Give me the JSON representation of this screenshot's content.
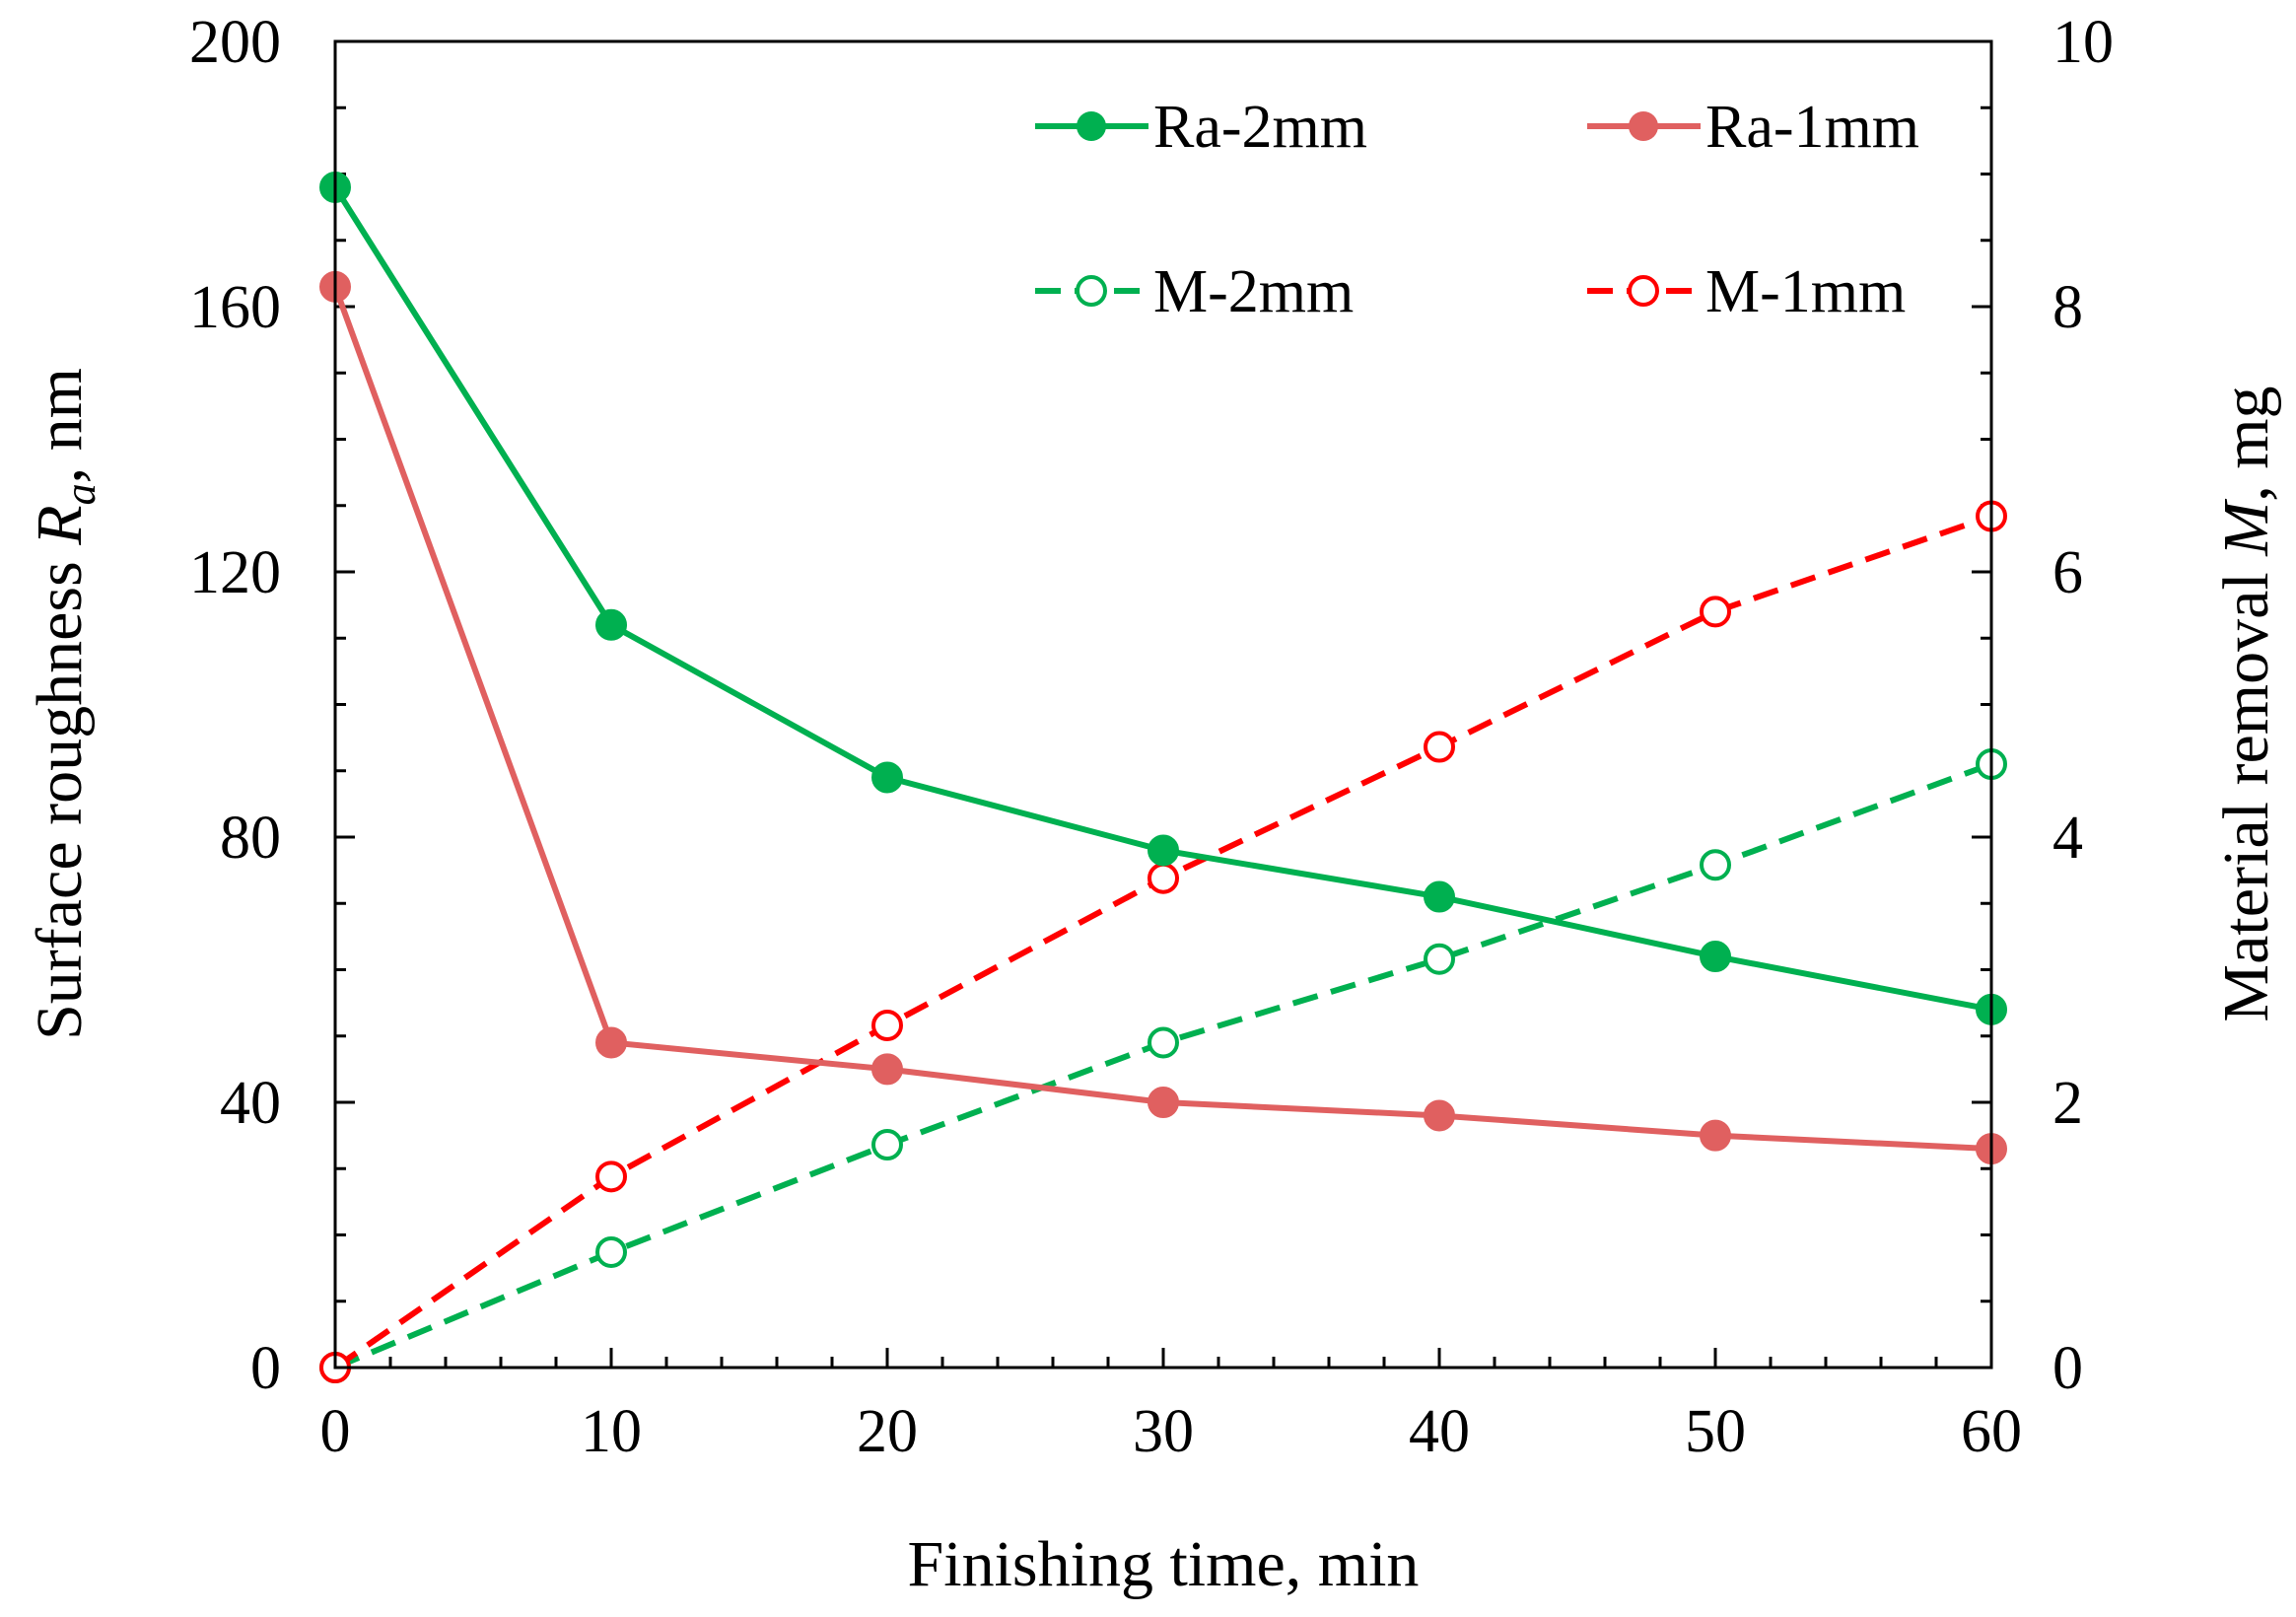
{
  "chart_data": {
    "type": "line",
    "x": [
      0,
      10,
      20,
      30,
      40,
      50,
      60
    ],
    "xlabel": "Finishing time, min",
    "xlim": [
      0,
      60
    ],
    "xticks": [
      "0",
      "10",
      "20",
      "30",
      "40",
      "50",
      "60"
    ],
    "y_left": {
      "label_parts": [
        "Surface roughness ",
        "R",
        "a",
        ",  nm"
      ],
      "lim": [
        0,
        200
      ],
      "ticks": [
        "0",
        "40",
        "80",
        "120",
        "160",
        "200"
      ]
    },
    "y_right": {
      "label_parts": [
        "Material removal ",
        "M",
        ", mg"
      ],
      "lim": [
        0,
        10
      ],
      "ticks": [
        "0",
        "2",
        "4",
        "6",
        "8",
        "10"
      ]
    },
    "series": [
      {
        "name": "Ra-2mm",
        "axis": "left",
        "style": "solid",
        "marker": "filled",
        "color": "#00b050",
        "values": [
          178,
          112,
          89,
          78,
          71,
          62,
          54
        ]
      },
      {
        "name": "Ra-1mm",
        "axis": "left",
        "style": "solid",
        "marker": "filled",
        "color": "#e06060",
        "values": [
          163,
          49,
          45,
          40,
          38,
          35,
          33
        ]
      },
      {
        "name": "M-2mm",
        "axis": "right",
        "style": "dashed",
        "marker": "open",
        "color": "#00b050",
        "values": [
          0,
          0.87,
          1.68,
          2.45,
          3.08,
          3.79,
          4.55
        ]
      },
      {
        "name": "M-1mm",
        "axis": "right",
        "style": "dashed",
        "marker": "open",
        "color": "#ff0000",
        "values": [
          0,
          1.44,
          2.58,
          3.69,
          4.68,
          5.7,
          6.42
        ]
      }
    ],
    "legend": {
      "position": "top-right",
      "columns": 2
    },
    "grid": false
  }
}
